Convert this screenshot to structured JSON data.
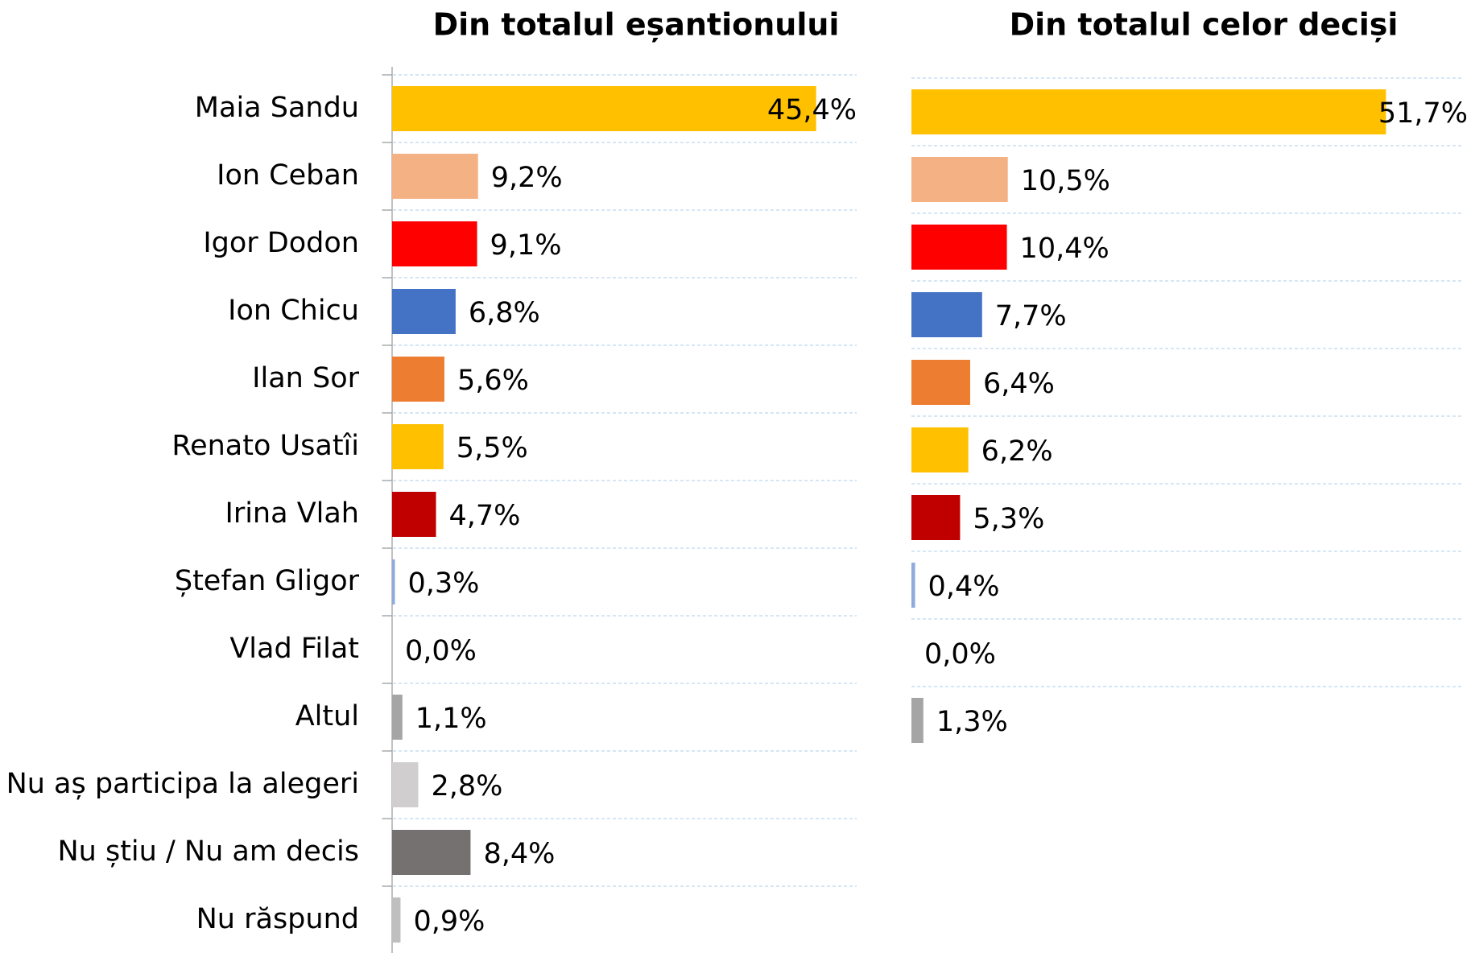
{
  "chart_data": [
    {
      "type": "hbar",
      "title": "Din totalul eșantionului",
      "categories": [
        "Maia Sandu",
        "Ion Ceban",
        "Igor Dodon",
        "Ion Chicu",
        "Ilan Sor",
        "Renato Usatîi",
        "Irina Vlah",
        "Ștefan Gligor",
        "Vlad Filat",
        "Altul",
        "Nu aș participa la alegeri",
        "Nu știu / Nu am decis",
        "Nu răspund"
      ],
      "values": [
        45.4,
        9.2,
        9.1,
        6.8,
        5.6,
        5.5,
        4.7,
        0.3,
        0.0,
        1.1,
        2.8,
        8.4,
        0.9
      ],
      "value_labels": [
        "45,4%",
        "9,2%",
        "9,1%",
        "6,8%",
        "5,6%",
        "5,5%",
        "4,7%",
        "0,3%",
        "0,0%",
        "1,1%",
        "2,8%",
        "8,4%",
        "0,9%"
      ],
      "colors": [
        "#ffc000",
        "#f4b183",
        "#ff0000",
        "#4472c4",
        "#ed7d31",
        "#ffc000",
        "#c00000",
        "#8faadc",
        "#a5a5a5",
        "#a5a5a5",
        "#d0cece",
        "#767171",
        "#bfbfbf"
      ],
      "grid": true
    },
    {
      "type": "hbar",
      "title": "Din totalul celor deciși",
      "values": [
        51.7,
        10.5,
        10.4,
        7.7,
        6.4,
        6.2,
        5.3,
        0.4,
        0.0,
        1.3
      ],
      "value_labels": [
        "51,7%",
        "10,5%",
        "10,4%",
        "7,7%",
        "6,4%",
        "6,2%",
        "5,3%",
        "0,4%",
        "0,0%",
        "1,3%"
      ],
      "colors": [
        "#ffc000",
        "#f4b183",
        "#ff0000",
        "#4472c4",
        "#ed7d31",
        "#ffc000",
        "#c00000",
        "#8faadc",
        "#a5a5a5",
        "#a5a5a5"
      ],
      "grid": true
    }
  ]
}
